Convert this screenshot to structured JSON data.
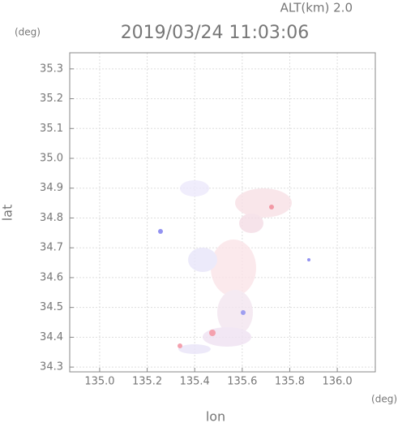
{
  "chart_data": {
    "type": "map",
    "title": "2019/03/24 11:03:06",
    "subtitle": "ALT(km) 2.0",
    "x_label": "lon",
    "y_label": "lat",
    "x_unit": "(deg)",
    "y_unit": "(deg)",
    "xlim": [
      134.874,
      136.16
    ],
    "ylim": [
      34.284,
      35.354
    ],
    "xticks": [
      {
        "value": 135.0,
        "label": "135.0"
      },
      135.2,
      135.4,
      135.6,
      135.8,
      {
        "value": 136.0,
        "label": "136.0"
      }
    ],
    "yticks": [
      34.3,
      34.4,
      34.5,
      34.6,
      34.7,
      34.8,
      34.9,
      {
        "value": 35.0,
        "label": "35.0"
      },
      35.1,
      35.2,
      35.3
    ],
    "grid": true
  }
}
